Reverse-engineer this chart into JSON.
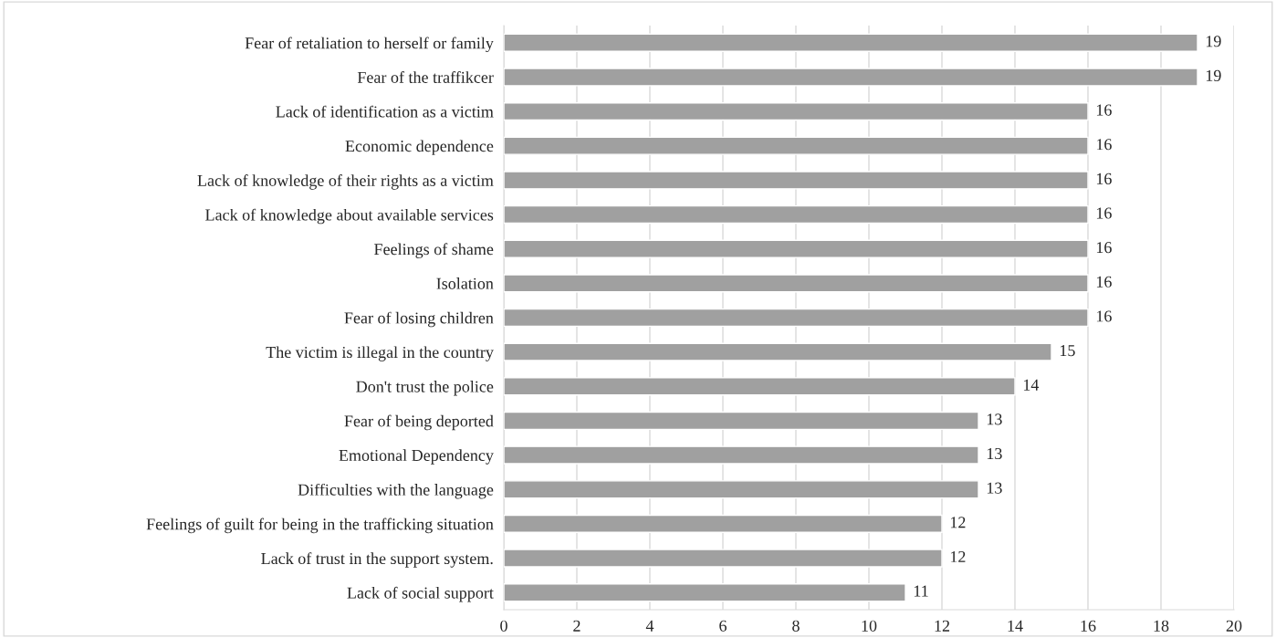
{
  "chart_data": {
    "type": "bar",
    "orientation": "horizontal",
    "categories": [
      "Fear of retaliation to herself or family",
      "Fear of the traffikcer",
      "Lack of identification as a victim",
      "Economic dependence",
      "Lack of knowledge of their rights as a victim",
      "Lack of knowledge about available services",
      "Feelings of shame",
      "Isolation",
      "Fear of losing children",
      "The victim is illegal in the country",
      "Don't trust the police",
      "Fear of being deported",
      "Emotional Dependency",
      "Difficulties with the language",
      "Feelings of guilt for being in the trafficking situation",
      "Lack of trust in the support system.",
      "Lack of social support"
    ],
    "values": [
      19,
      19,
      16,
      16,
      16,
      16,
      16,
      16,
      16,
      15,
      14,
      13,
      13,
      13,
      12,
      12,
      11
    ],
    "color": "#a0a0a0",
    "xlim": [
      0,
      20
    ],
    "xticks": [
      0,
      2,
      4,
      6,
      8,
      10,
      12,
      14,
      16,
      18,
      20
    ],
    "grid": "x",
    "data_labels": true
  }
}
